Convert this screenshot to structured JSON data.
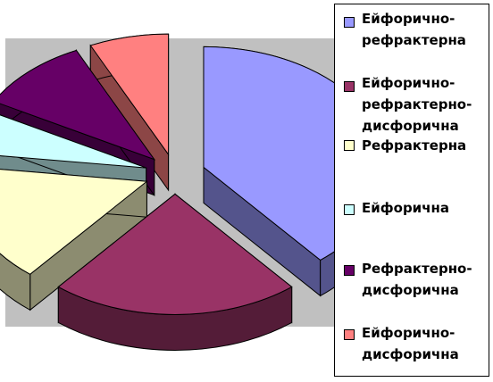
{
  "chart_data": {
    "type": "pie",
    "style": "3d-exploded",
    "title": "",
    "slices": [
      {
        "label": "Ейфорично-рефрактерна",
        "value": 39,
        "color": "#9999FF"
      },
      {
        "label": "Ейфорично-рефрактерно-дисфорична",
        "value": 22,
        "color": "#993366"
      },
      {
        "label": "Рефрактерна",
        "value": 16,
        "color": "#FFFFCC"
      },
      {
        "label": "Ейфорична",
        "value": 6,
        "color": "#CCFFFF"
      },
      {
        "label": "Рефрактерно-дисфорична",
        "value": 10,
        "color": "#660066"
      },
      {
        "label": "Ейфорично-дисфорична",
        "value": 7,
        "color": "#FF8080"
      }
    ],
    "legend_position": "right",
    "plot_background": "#C0C0C0"
  },
  "legend": {
    "items": [
      {
        "line1": "Ейфорично-",
        "line2": "рефрактерна",
        "line3": ""
      },
      {
        "line1": "Ейфорично-",
        "line2": "рефрактерно-",
        "line3": "дисфорична"
      },
      {
        "line1": "Рефрактерна",
        "line2": "",
        "line3": ""
      },
      {
        "line1": "Ейфорична",
        "line2": "",
        "line3": ""
      },
      {
        "line1": "Рефрактерно-",
        "line2": "дисфорична",
        "line3": ""
      },
      {
        "line1": "Ейфорично-",
        "line2": "дисфорична",
        "line3": ""
      }
    ]
  }
}
